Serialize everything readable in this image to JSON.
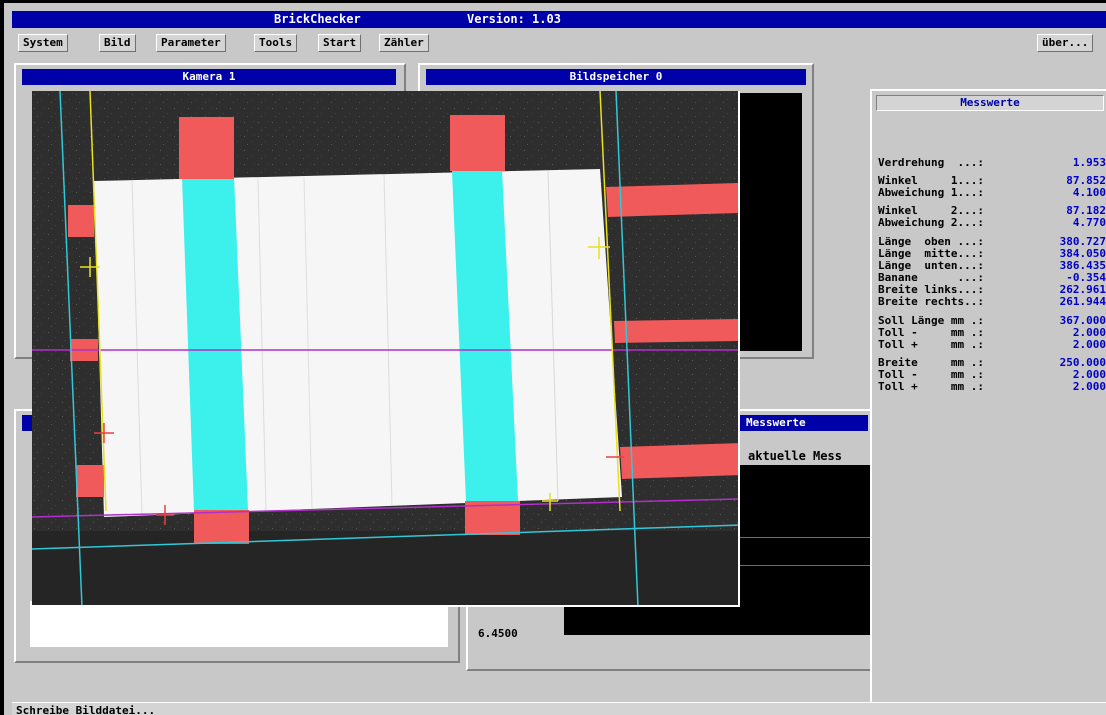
{
  "window": {
    "title": "BrickChecker",
    "version": "Version: 1.03"
  },
  "menu": {
    "items": [
      "System",
      "Bild",
      "Parameter",
      "Tools",
      "Start",
      "Zähler"
    ],
    "about": "über..."
  },
  "panels": {
    "kamera": "Kamera 1",
    "bildspeicher": "Bildspeicher  0",
    "messwerte_lower": "Messwerte",
    "aktuelle": "aktuelle Mess",
    "value_readout": "6.4500"
  },
  "messwerte": {
    "title": "Messwerte",
    "rows": [
      {
        "label": "Verdrehung  ...:",
        "value": "1.953"
      },
      {
        "label": "Winkel     1...:",
        "value": "87.852"
      },
      {
        "label": "Abweichung 1...:",
        "value": "4.100"
      },
      {
        "label": "Winkel     2...:",
        "value": "87.182"
      },
      {
        "label": "Abweichung 2...:",
        "value": "4.770"
      },
      {
        "label": "Länge  oben ...:",
        "value": "380.727"
      },
      {
        "label": "Länge  mitte...:",
        "value": "384.050"
      },
      {
        "label": "Länge  unten...:",
        "value": "386.435"
      },
      {
        "label": "Banane      ...:",
        "value": "-0.354"
      },
      {
        "label": "Breite links...:",
        "value": "262.961"
      },
      {
        "label": "Breite rechts..:",
        "value": "261.944"
      },
      {
        "label": "Soll Länge mm .:",
        "value": "367.000"
      },
      {
        "label": "Toll -     mm .:",
        "value": "2.000"
      },
      {
        "label": "Toll +     mm .:",
        "value": "2.000"
      },
      {
        "label": "Breite     mm .:",
        "value": "250.000"
      },
      {
        "label": "Toll -     mm .:",
        "value": "2.000"
      },
      {
        "label": "Toll +     mm .:",
        "value": "2.000"
      }
    ]
  },
  "status": {
    "text": "Schreibe Bilddatei..."
  },
  "colors": {
    "title_blue": "#0000a8",
    "value_blue": "#0000c8",
    "marker_red": "#f05a5a",
    "strip_cyan": "#3cf0ec",
    "line_magenta": "#b030c8",
    "line_cyan": "#30c8d8",
    "line_yellow": "#e8e020"
  }
}
